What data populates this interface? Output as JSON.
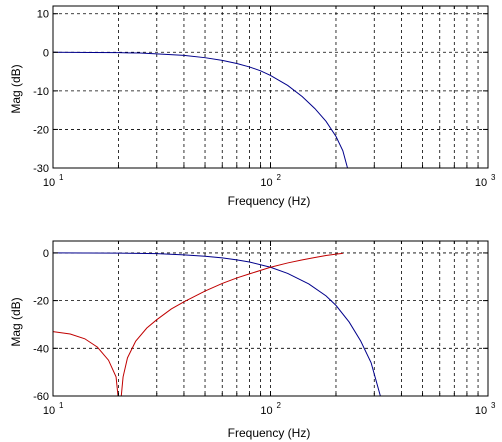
{
  "chart_data": [
    {
      "type": "line",
      "title": "",
      "xlabel": "Frequency (Hz)",
      "ylabel": "Mag (dB)",
      "xscale": "log",
      "xlim": [
        10,
        1000
      ],
      "ylim": [
        -30,
        12
      ],
      "grid": true,
      "legend": "none",
      "xticks": [
        {
          "base": "10",
          "exp": "1",
          "value": 10
        },
        {
          "base": "10",
          "exp": "2",
          "value": 100
        },
        {
          "base": "10",
          "exp": "3",
          "value": 1000
        }
      ],
      "yticks": [
        {
          "label": "10",
          "value": 10
        },
        {
          "label": "0",
          "value": 0
        },
        {
          "label": "-10",
          "value": -10
        },
        {
          "label": "-20",
          "value": -20
        },
        {
          "label": "-30",
          "value": -30
        }
      ],
      "series": [
        {
          "color": "#00008b",
          "x": [
            10,
            15,
            20,
            25,
            30,
            40,
            50,
            60,
            70,
            80,
            90,
            100,
            120,
            140,
            160,
            180,
            200,
            215,
            226
          ],
          "y": [
            0,
            -0.05,
            -0.1,
            -0.2,
            -0.4,
            -0.8,
            -1.4,
            -2.1,
            -2.9,
            -3.8,
            -4.8,
            -6.0,
            -8.6,
            -11.5,
            -14.6,
            -17.9,
            -21.8,
            -25.5,
            -30
          ]
        }
      ]
    },
    {
      "type": "line",
      "title": "",
      "xlabel": "Frequency (Hz)",
      "ylabel": "Mag (dB)",
      "xscale": "log",
      "xlim": [
        10,
        1000
      ],
      "ylim": [
        -60,
        5
      ],
      "grid": true,
      "legend": "none",
      "xticks": [
        {
          "base": "10",
          "exp": "1",
          "value": 10
        },
        {
          "base": "10",
          "exp": "2",
          "value": 100
        },
        {
          "base": "10",
          "exp": "3",
          "value": 1000
        }
      ],
      "yticks": [
        {
          "label": "0",
          "value": 0
        },
        {
          "label": "-20",
          "value": -20
        },
        {
          "label": "-40",
          "value": -40
        },
        {
          "label": "-60",
          "value": -60
        }
      ],
      "series": [
        {
          "color": "#00008b",
          "x": [
            10,
            20,
            30,
            40,
            50,
            60,
            70,
            80,
            100,
            120,
            150,
            180,
            200,
            230,
            260,
            290,
            320
          ],
          "y": [
            0,
            -0.1,
            -0.3,
            -0.8,
            -1.4,
            -2.1,
            -2.9,
            -3.8,
            -6.0,
            -8.6,
            -13.0,
            -18.0,
            -22.0,
            -29.0,
            -37.0,
            -46.0,
            -60.0
          ]
        },
        {
          "color": "#c00000",
          "x": [
            10,
            12,
            14,
            16,
            18,
            19.5,
            19.9
          ],
          "y": [
            -33,
            -34,
            -36,
            -39.5,
            -45,
            -52,
            -60
          ]
        },
        {
          "color": "#c00000",
          "x": [
            20.6,
            21,
            22,
            24,
            27,
            30,
            35,
            40,
            50,
            60,
            70,
            80,
            100,
            120,
            140,
            160,
            180,
            200,
            215
          ],
          "y": [
            -60,
            -52,
            -44,
            -37,
            -31.5,
            -28,
            -23.5,
            -20.5,
            -16,
            -12.8,
            -10.5,
            -8.8,
            -6.0,
            -4.2,
            -2.9,
            -1.9,
            -1.1,
            -0.5,
            -0.2
          ]
        }
      ]
    }
  ]
}
